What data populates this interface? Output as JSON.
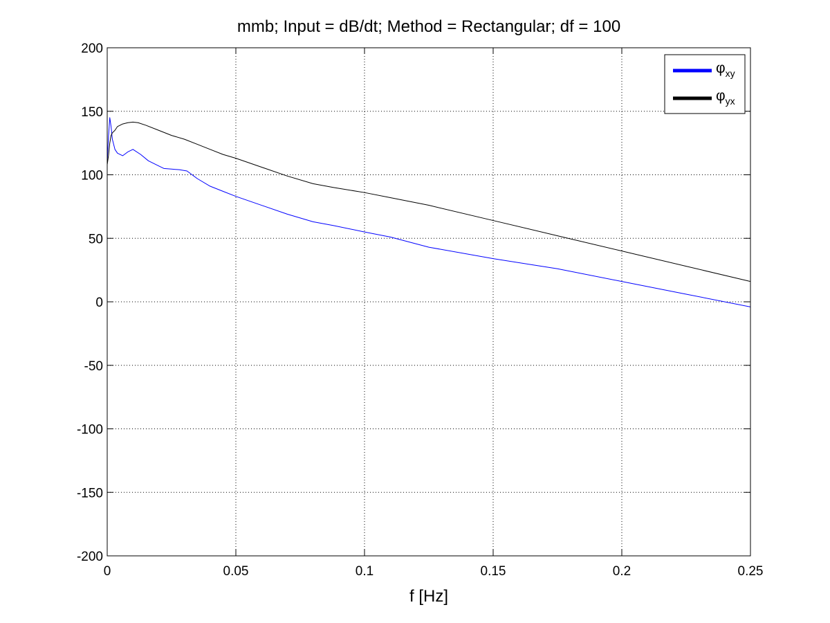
{
  "chart_data": {
    "type": "line",
    "title": "mmb; Input = dB/dt; Method = Rectangular; df = 100",
    "xlabel": "f [Hz]",
    "ylabel": "",
    "xlim": [
      0,
      0.25
    ],
    "ylim": [
      -200,
      200
    ],
    "xticks": [
      0,
      0.05,
      0.1,
      0.15,
      0.2,
      0.25
    ],
    "xtick_labels": [
      "0",
      "0.05",
      "0.1",
      "0.15",
      "0.2",
      "0.25"
    ],
    "yticks": [
      -200,
      -150,
      -100,
      -50,
      0,
      50,
      100,
      150,
      200
    ],
    "ytick_labels": [
      "-200",
      "-150",
      "-100",
      "-50",
      "0",
      "50",
      "100",
      "150",
      "200"
    ],
    "grid": true,
    "legend_position": "top-right",
    "series": [
      {
        "name": "φxy",
        "legend_main": "φ",
        "legend_sub": "xy",
        "color": "#0000ff",
        "x": [
          0,
          0.0005,
          0.001,
          0.0015,
          0.002,
          0.003,
          0.004,
          0.006,
          0.008,
          0.01,
          0.013,
          0.016,
          0.02,
          0.022,
          0.025,
          0.028,
          0.031,
          0.035,
          0.04,
          0.045,
          0.05,
          0.06,
          0.07,
          0.08,
          0.088,
          0.1,
          0.11,
          0.125,
          0.15,
          0.175,
          0.2,
          0.225,
          0.25
        ],
        "y": [
          110,
          130,
          145,
          138,
          128,
          120,
          117,
          115,
          118,
          120,
          116,
          111,
          107,
          105,
          104.5,
          104,
          103,
          97,
          91,
          87,
          83,
          76,
          69,
          63,
          60,
          55,
          51,
          43,
          34,
          26,
          16,
          6,
          -4
        ]
      },
      {
        "name": "φyx",
        "legend_main": "φ",
        "legend_sub": "yx",
        "color": "#000000",
        "x": [
          0,
          0.0005,
          0.001,
          0.0015,
          0.002,
          0.003,
          0.004,
          0.006,
          0.008,
          0.01,
          0.012,
          0.015,
          0.02,
          0.025,
          0.03,
          0.035,
          0.04,
          0.045,
          0.05,
          0.06,
          0.07,
          0.08,
          0.088,
          0.1,
          0.11,
          0.125,
          0.15,
          0.175,
          0.2,
          0.225,
          0.25
        ],
        "y": [
          108,
          115,
          125,
          131,
          133,
          135,
          138,
          140,
          141,
          141.5,
          141,
          139,
          135,
          131,
          128,
          124,
          120,
          116,
          113,
          106,
          99,
          93,
          90,
          86,
          82,
          76,
          64,
          52,
          40,
          28,
          16
        ]
      }
    ]
  }
}
